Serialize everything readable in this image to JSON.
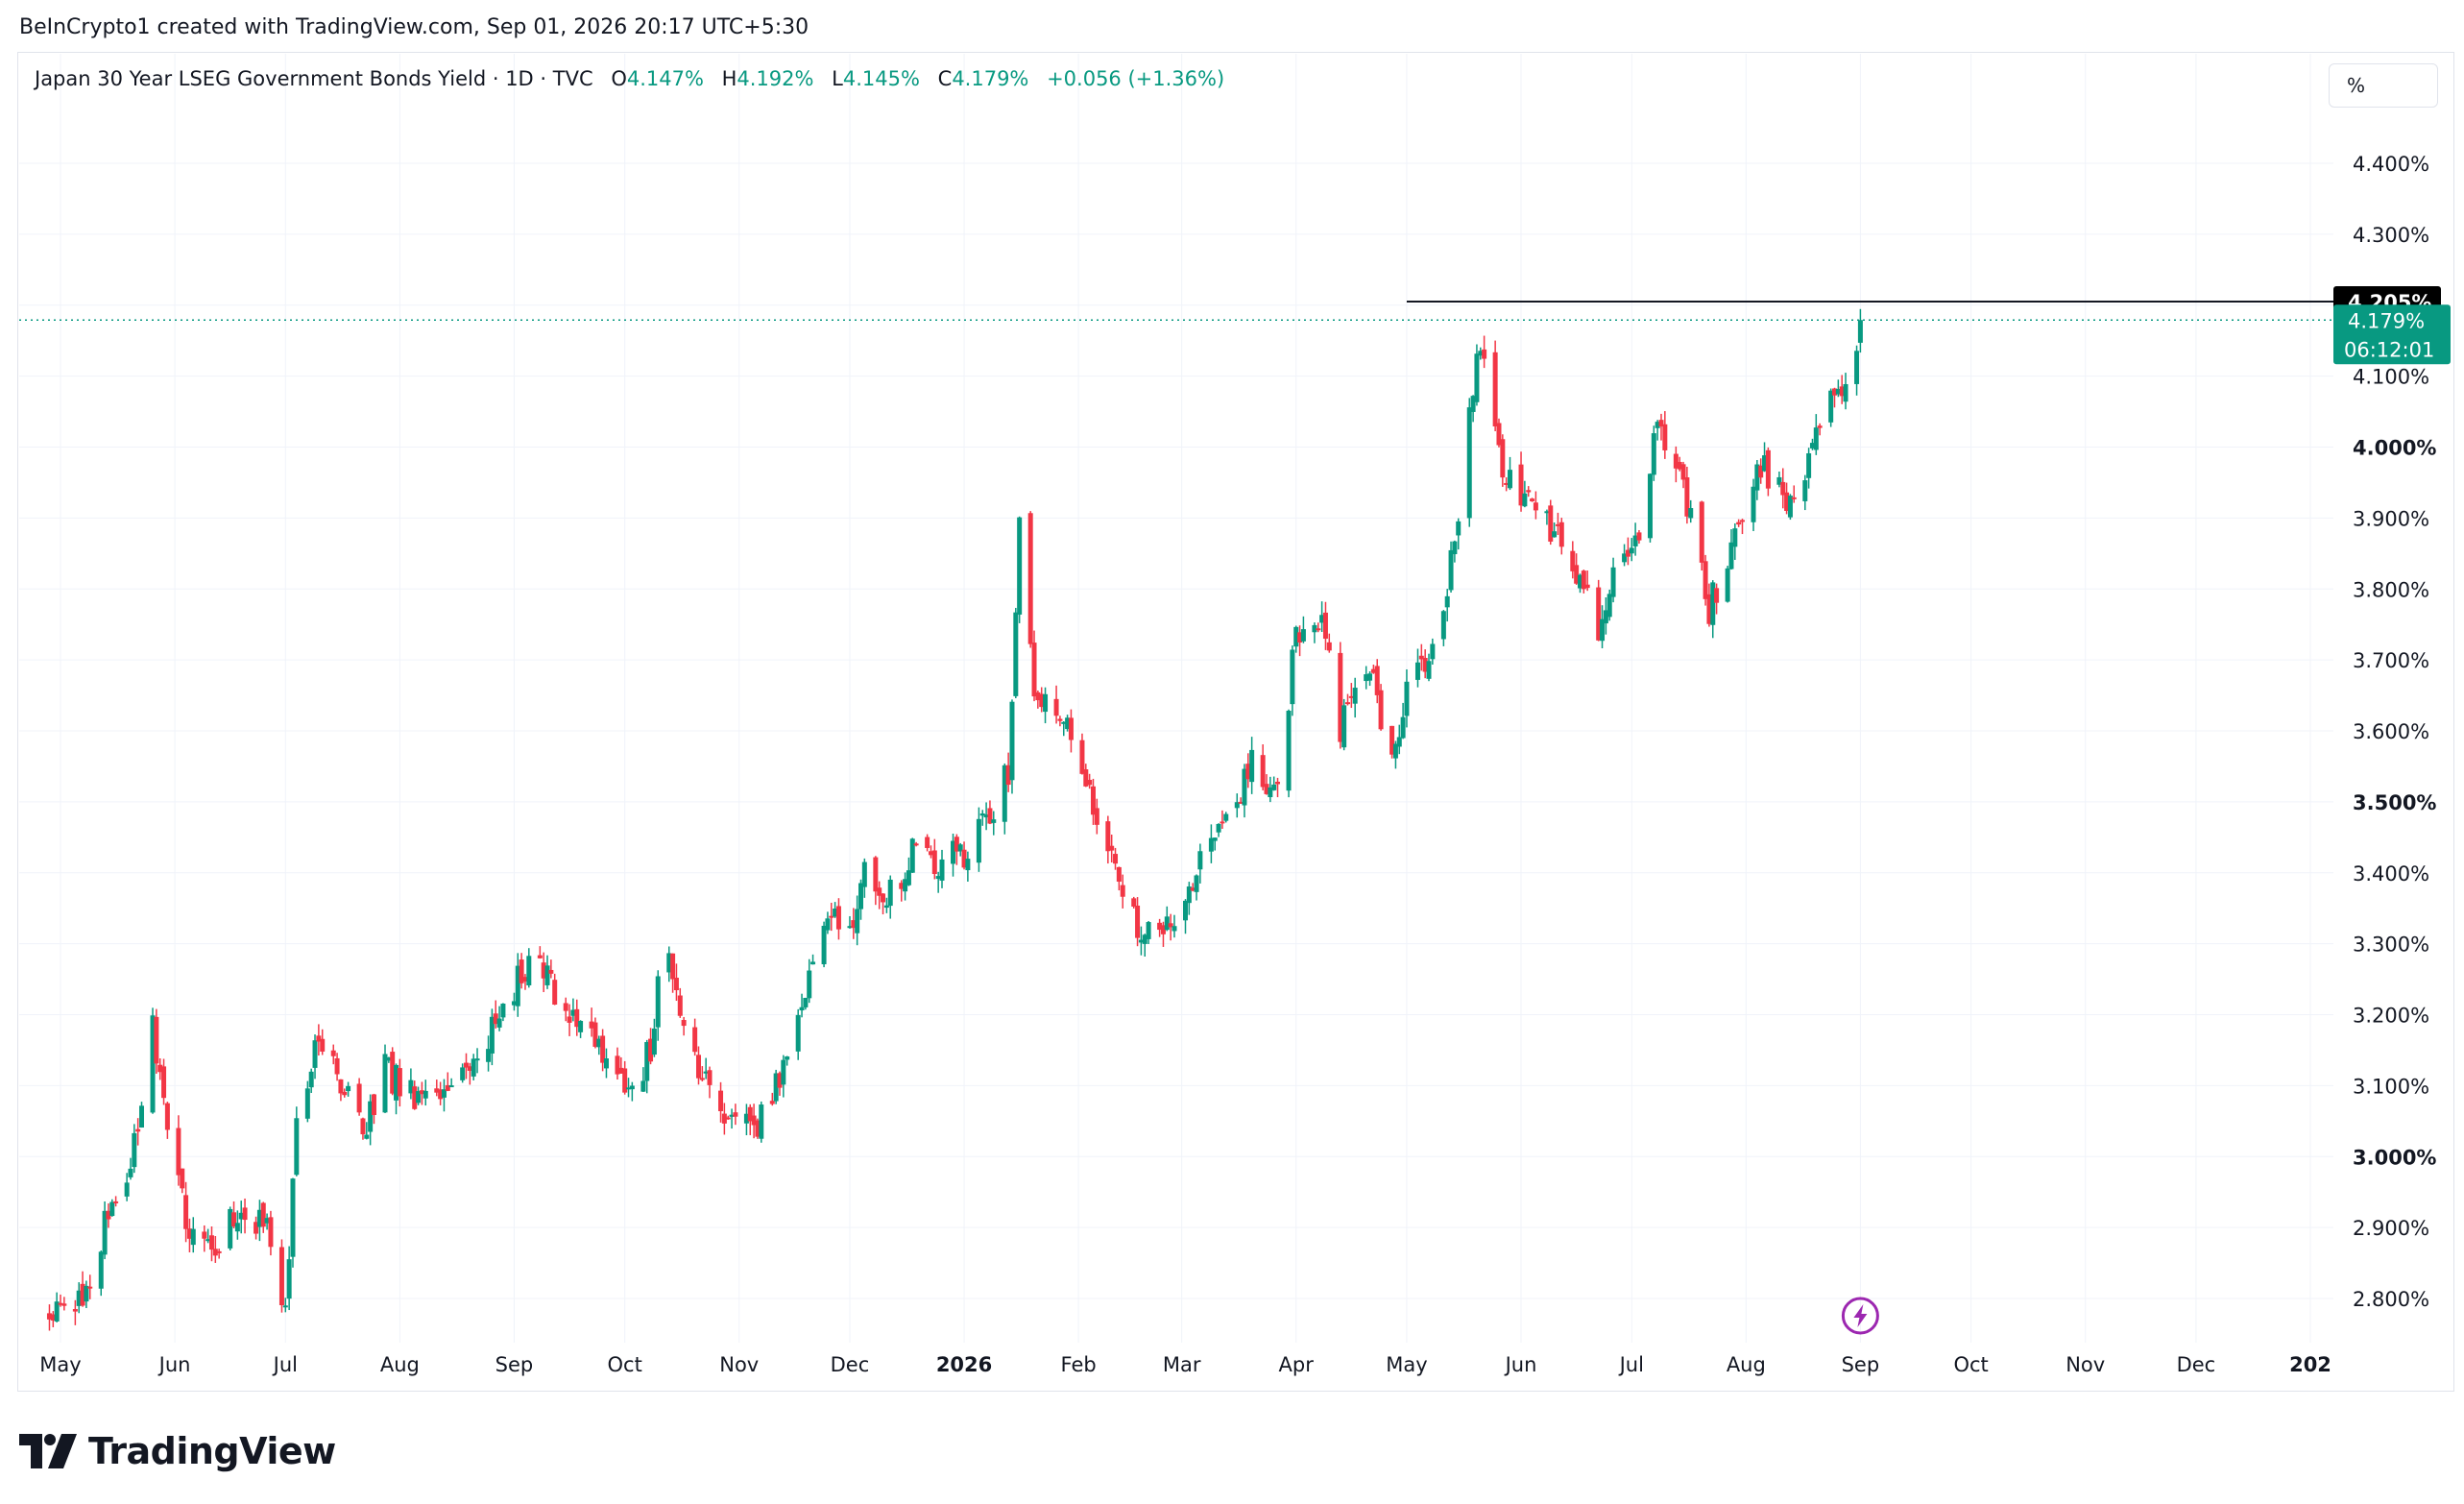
{
  "header": {
    "credit": "BeInCrypto1 created with TradingView.com, Sep 01, 2026 20:17 UTC+5:30"
  },
  "legend": {
    "symbol": "Japan 30 Year LSEG Government Bonds Yield · 1D · TVC",
    "open_label": "O",
    "open": "4.147%",
    "high_label": "H",
    "high": "4.192%",
    "low_label": "L",
    "low": "4.145%",
    "close_label": "C",
    "close": "4.179%",
    "change": "+0.056 (+1.36%)"
  },
  "price_axis": {
    "unit": "%",
    "last_price_label": "4.179%",
    "countdown": "06:12:01",
    "resistance_label": "4.205%"
  },
  "footer": {
    "brand": "TradingView"
  },
  "colors": {
    "up": "#089981",
    "down": "#f23645",
    "grid": "#f0f3fa",
    "resistance": "#131722",
    "last_price_line": "#089981",
    "lightning": "#9c27b0"
  },
  "chart_data": {
    "type": "candlestick",
    "title": "Japan 30 Year LSEG Government Bonds Yield · 1D · TVC",
    "y_unit": "%",
    "ylim": [
      2.74,
      4.53
    ],
    "y_ticks": [
      2.8,
      2.9,
      3.0,
      3.1,
      3.2,
      3.3,
      3.4,
      3.5,
      3.6,
      3.7,
      3.8,
      3.9,
      4.0,
      4.1,
      4.2,
      4.3,
      4.4
    ],
    "y_tick_labels": [
      "2.800%",
      "2.900%",
      "3.000%",
      "3.100%",
      "3.200%",
      "3.300%",
      "3.400%",
      "3.500%",
      "3.600%",
      "3.700%",
      "3.800%",
      "3.900%",
      "4.000%",
      "4.100%",
      "4.200%",
      "4.300%",
      "4.400%"
    ],
    "y_tick_bold": [
      "3.000%",
      "3.500%",
      "4.000%"
    ],
    "x_labels": [
      {
        "label": "May",
        "date": "2025-05-01",
        "bold": false
      },
      {
        "label": "Jun",
        "date": "2025-06-01",
        "bold": false
      },
      {
        "label": "Jul",
        "date": "2025-07-01",
        "bold": false
      },
      {
        "label": "Aug",
        "date": "2025-08-01",
        "bold": false
      },
      {
        "label": "Sep",
        "date": "2025-09-01",
        "bold": false
      },
      {
        "label": "Oct",
        "date": "2025-10-01",
        "bold": false
      },
      {
        "label": "Nov",
        "date": "2025-11-01",
        "bold": false
      },
      {
        "label": "Dec",
        "date": "2025-12-01",
        "bold": false
      },
      {
        "label": "2026",
        "date": "2026-01-01",
        "bold": true
      },
      {
        "label": "Feb",
        "date": "2026-02-01",
        "bold": false
      },
      {
        "label": "Mar",
        "date": "2026-03-01",
        "bold": false
      },
      {
        "label": "Apr",
        "date": "2026-04-01",
        "bold": false
      },
      {
        "label": "May",
        "date": "2026-05-01",
        "bold": false
      },
      {
        "label": "Jun",
        "date": "2026-06-01",
        "bold": false
      },
      {
        "label": "Jul",
        "date": "2026-07-01",
        "bold": false
      },
      {
        "label": "Aug",
        "date": "2026-08-01",
        "bold": false
      },
      {
        "label": "Sep",
        "date": "2026-09-01",
        "bold": false
      },
      {
        "label": "Oct",
        "date": "2026-10-01",
        "bold": false
      },
      {
        "label": "Nov",
        "date": "2026-11-01",
        "bold": false
      },
      {
        "label": "Dec",
        "date": "2026-12-01",
        "bold": false
      },
      {
        "label": "202",
        "date": "2027-01-01",
        "bold": true
      }
    ],
    "close_path": [
      [
        "2025-04-28",
        2.78
      ],
      [
        "2025-05-08",
        2.8
      ],
      [
        "2025-05-14",
        2.93
      ],
      [
        "2025-05-20",
        2.98
      ],
      [
        "2025-05-26",
        3.19
      ],
      [
        "2025-05-30",
        3.03
      ],
      [
        "2025-06-05",
        2.9
      ],
      [
        "2025-06-12",
        2.88
      ],
      [
        "2025-06-20",
        2.93
      ],
      [
        "2025-06-28",
        2.88
      ],
      [
        "2025-07-01",
        2.78
      ],
      [
        "2025-07-04",
        3.05
      ],
      [
        "2025-07-10",
        3.18
      ],
      [
        "2025-07-15",
        3.12
      ],
      [
        "2025-07-22",
        3.03
      ],
      [
        "2025-07-28",
        3.12
      ],
      [
        "2025-08-05",
        3.08
      ],
      [
        "2025-08-15",
        3.1
      ],
      [
        "2025-08-25",
        3.17
      ],
      [
        "2025-09-05",
        3.28
      ],
      [
        "2025-09-12",
        3.23
      ],
      [
        "2025-09-20",
        3.17
      ],
      [
        "2025-09-28",
        3.12
      ],
      [
        "2025-10-03",
        3.1
      ],
      [
        "2025-10-08",
        3.15
      ],
      [
        "2025-10-12",
        3.32
      ],
      [
        "2025-10-16",
        3.2
      ],
      [
        "2025-10-22",
        3.12
      ],
      [
        "2025-10-30",
        3.05
      ],
      [
        "2025-11-05",
        3.04
      ],
      [
        "2025-11-12",
        3.12
      ],
      [
        "2025-11-20",
        3.24
      ],
      [
        "2025-11-25",
        3.35
      ],
      [
        "2025-12-01",
        3.33
      ],
      [
        "2025-12-06",
        3.41
      ],
      [
        "2025-12-12",
        3.37
      ],
      [
        "2025-12-18",
        3.43
      ],
      [
        "2025-12-24",
        3.41
      ],
      [
        "2026-01-02",
        3.43
      ],
      [
        "2026-01-08",
        3.48
      ],
      [
        "2026-01-13",
        3.54
      ],
      [
        "2026-01-16",
        3.89
      ],
      [
        "2026-01-20",
        3.66
      ],
      [
        "2026-01-28",
        3.63
      ],
      [
        "2026-02-03",
        3.53
      ],
      [
        "2026-02-10",
        3.42
      ],
      [
        "2026-02-18",
        3.3
      ],
      [
        "2026-02-25",
        3.32
      ],
      [
        "2026-03-05",
        3.4
      ],
      [
        "2026-03-12",
        3.47
      ],
      [
        "2026-03-20",
        3.55
      ],
      [
        "2026-03-27",
        3.51
      ],
      [
        "2026-04-01",
        3.74
      ],
      [
        "2026-04-08",
        3.76
      ],
      [
        "2026-04-13",
        3.6
      ],
      [
        "2026-04-20",
        3.7
      ],
      [
        "2026-04-26",
        3.57
      ],
      [
        "2026-05-02",
        3.66
      ],
      [
        "2026-05-08",
        3.72
      ],
      [
        "2026-05-12",
        3.8
      ],
      [
        "2026-05-17",
        3.98
      ],
      [
        "2026-05-20",
        4.15
      ],
      [
        "2026-05-23",
        4.08
      ],
      [
        "2026-05-28",
        3.95
      ],
      [
        "2026-06-03",
        3.92
      ],
      [
        "2026-06-10",
        3.88
      ],
      [
        "2026-06-16",
        3.82
      ],
      [
        "2026-06-22",
        3.74
      ],
      [
        "2026-06-28",
        3.84
      ],
      [
        "2026-07-03",
        3.87
      ],
      [
        "2026-07-08",
        4.05
      ],
      [
        "2026-07-13",
        3.97
      ],
      [
        "2026-07-18",
        3.88
      ],
      [
        "2026-07-22",
        3.77
      ],
      [
        "2026-07-28",
        3.87
      ],
      [
        "2026-08-05",
        3.98
      ],
      [
        "2026-08-12",
        3.92
      ],
      [
        "2026-08-18",
        3.97
      ],
      [
        "2026-08-23",
        4.1
      ],
      [
        "2026-08-27",
        4.06
      ],
      [
        "2026-09-01",
        4.179
      ]
    ],
    "resistance_level": 4.205,
    "resistance_start": "2026-05-01",
    "last_price": 4.179
  }
}
